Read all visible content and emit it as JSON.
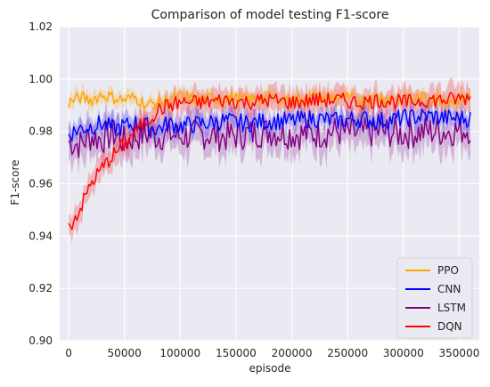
{
  "chart_data": {
    "type": "line",
    "title": "Comparison of model testing F1-score",
    "xlabel": "episode",
    "ylabel": "F1-score",
    "xlim": [
      -8000,
      368000
    ],
    "ylim": [
      0.9,
      1.02
    ],
    "grid": true,
    "legend_position": "bottom-right",
    "xticks": [
      0,
      50000,
      100000,
      150000,
      200000,
      250000,
      300000,
      350000
    ],
    "yticks": [
      0.9,
      0.92,
      0.94,
      0.96,
      0.98,
      1.0,
      1.02
    ],
    "xtick_labels": [
      "0",
      "50000",
      "100000",
      "150000",
      "200000",
      "250000",
      "300000",
      "350000"
    ],
    "ytick_labels": [
      "0.90",
      "0.92",
      "0.94",
      "0.96",
      "0.98",
      "1.00",
      "1.02"
    ],
    "series": [
      {
        "name": "PPO",
        "color": "#ffa500",
        "x": [
          0,
          10000,
          20000,
          30000,
          40000,
          50000,
          60000,
          70000,
          80000,
          90000,
          100000,
          120000,
          140000,
          160000,
          180000,
          200000,
          220000,
          240000,
          260000,
          280000,
          300000,
          320000,
          340000,
          360000
        ],
        "values": [
          0.991,
          0.993,
          0.992,
          0.994,
          0.993,
          0.992,
          0.993,
          0.99,
          0.991,
          0.992,
          0.993,
          0.992,
          0.993,
          0.992,
          0.993,
          0.992,
          0.993,
          0.993,
          0.992,
          0.993,
          0.992,
          0.993,
          0.992,
          0.993
        ]
      },
      {
        "name": "CNN",
        "color": "#0000ff",
        "x": [
          0,
          10000,
          20000,
          30000,
          40000,
          50000,
          60000,
          70000,
          80000,
          90000,
          100000,
          120000,
          140000,
          160000,
          180000,
          200000,
          220000,
          240000,
          260000,
          280000,
          300000,
          320000,
          340000,
          360000
        ],
        "values": [
          0.979,
          0.981,
          0.982,
          0.983,
          0.981,
          0.982,
          0.983,
          0.982,
          0.981,
          0.983,
          0.982,
          0.983,
          0.984,
          0.983,
          0.984,
          0.984,
          0.985,
          0.984,
          0.985,
          0.984,
          0.985,
          0.986,
          0.985,
          0.985
        ]
      },
      {
        "name": "LSTM",
        "color": "#800080",
        "x": [
          0,
          10000,
          20000,
          30000,
          40000,
          50000,
          60000,
          70000,
          80000,
          90000,
          100000,
          120000,
          140000,
          160000,
          180000,
          200000,
          220000,
          240000,
          260000,
          280000,
          300000,
          320000,
          340000,
          360000
        ],
        "values": [
          0.976,
          0.975,
          0.978,
          0.977,
          0.979,
          0.976,
          0.978,
          0.979,
          0.978,
          0.979,
          0.978,
          0.979,
          0.978,
          0.979,
          0.98,
          0.979,
          0.979,
          0.98,
          0.979,
          0.98,
          0.979,
          0.98,
          0.98,
          0.981
        ]
      },
      {
        "name": "DQN",
        "color": "#ff0000",
        "x": [
          0,
          10000,
          20000,
          30000,
          40000,
          50000,
          60000,
          70000,
          80000,
          90000,
          100000,
          120000,
          140000,
          160000,
          180000,
          200000,
          220000,
          240000,
          260000,
          280000,
          300000,
          320000,
          340000,
          360000
        ],
        "values": [
          0.943,
          0.95,
          0.96,
          0.966,
          0.971,
          0.975,
          0.98,
          0.984,
          0.988,
          0.99,
          0.991,
          0.991,
          0.992,
          0.991,
          0.992,
          0.991,
          0.992,
          0.992,
          0.991,
          0.992,
          0.991,
          0.992,
          0.992,
          0.993
        ]
      }
    ]
  }
}
